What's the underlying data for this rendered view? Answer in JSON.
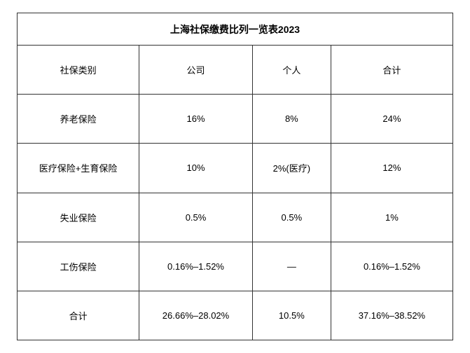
{
  "table": {
    "title": "上海社保缴费比列一览表2023",
    "columns": [
      "社保类别",
      "公司",
      "个人",
      "合计"
    ],
    "rows": [
      [
        "养老保险",
        "16%",
        "8%",
        "24%"
      ],
      [
        "医疗保险+生育保险",
        "10%",
        "2%(医疗)",
        "12%"
      ],
      [
        "失业保险",
        "0.5%",
        "0.5%",
        "1%"
      ],
      [
        "工伤保险",
        "0.16%–1.52%",
        "—",
        "0.16%–1.52%"
      ],
      [
        "合计",
        "26.66%–28.02%",
        "10.5%",
        "37.16%–38.52%"
      ]
    ],
    "border_color": "#333333",
    "background_color": "#ffffff",
    "text_color": "#000000",
    "title_fontsize": 14,
    "cell_fontsize": 13,
    "column_widths_pct": [
      28,
      26,
      18,
      28
    ]
  }
}
